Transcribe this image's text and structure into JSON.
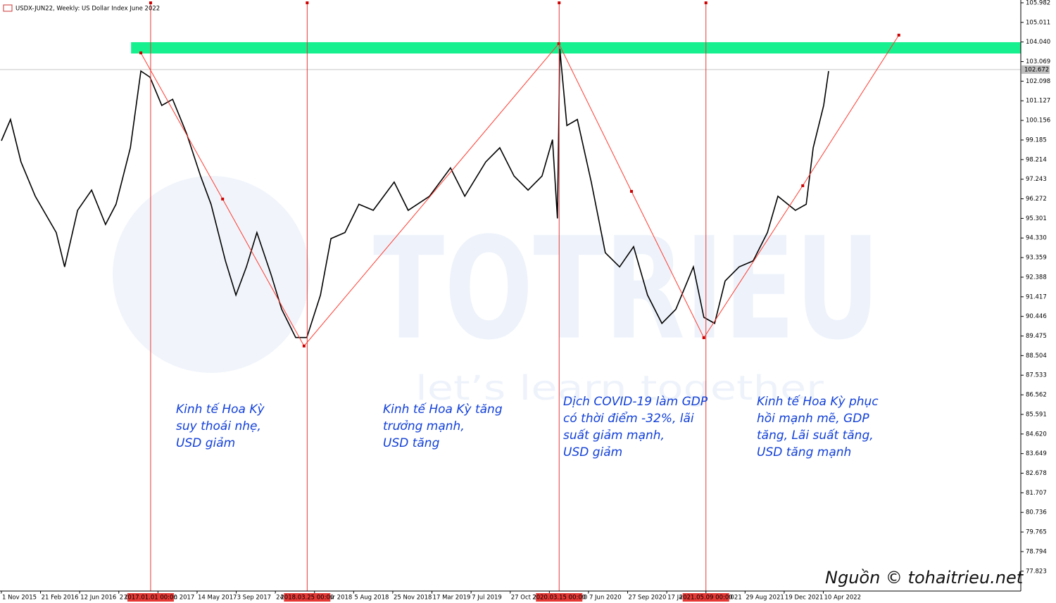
{
  "chart_data": {
    "type": "line",
    "title": "USDX-JUN22, Weekly:  US Dollar Index June 2022",
    "xlim": [
      "2015-10-28",
      "2023-10-27"
    ],
    "ylim": [
      76.84,
      106.12
    ],
    "yticks": [
      105.982,
      105.011,
      {
        "value": 104.04,
        "label": "104.040"
      },
      103.069,
      102.098,
      101.127,
      100.156,
      99.185,
      98.214,
      97.243,
      96.272,
      95.301,
      {
        "value": 94.33,
        "label": "94.330"
      },
      93.359,
      92.388,
      91.417,
      90.446,
      89.475,
      88.504,
      87.533,
      86.562,
      85.591,
      {
        "value": 84.62,
        "label": "84.620"
      },
      83.649,
      82.678,
      81.707,
      80.736,
      79.765,
      78.794,
      77.823
    ],
    "xticks": [
      {
        "value": "2015-11-01",
        "label": "1 Nov 2015"
      },
      {
        "value": "2016-02-21",
        "label": "21 Feb 2016"
      },
      {
        "value": "2016-06-12",
        "label": "12 Jun 2016"
      },
      {
        "value": "2016-10-02",
        "label": "2 Oct 2016"
      },
      {
        "value": "2017-01-22",
        "label": "22 Jan 2017"
      },
      {
        "value": "2017-05-14",
        "label": "14 May 2017"
      },
      {
        "value": "2017-09-03",
        "label": "3 Sep 2017"
      },
      {
        "value": "2017-12-24",
        "label": "24 Dec 2017"
      },
      {
        "value": "2018-04-15",
        "label": "15 Apr 2018"
      },
      {
        "value": "2018-08-05",
        "label": "5 Aug 2018"
      },
      {
        "value": "2018-11-25",
        "label": "25 Nov 2018"
      },
      {
        "value": "2019-03-17",
        "label": "17 Mar 2019"
      },
      {
        "value": "2019-07-07",
        "label": "7 Jul 2019"
      },
      {
        "value": "2019-10-27",
        "label": "27 Oct 2019"
      },
      {
        "value": "2020-02-16",
        "label": "16 Feb 2020"
      },
      {
        "value": "2020-06-07",
        "label": "7 Jun 2020"
      },
      {
        "value": "2020-09-27",
        "label": "27 Sep 2020"
      },
      {
        "value": "2021-01-17",
        "label": "17 Jan 2021"
      },
      {
        "value": "2021-05-09",
        "label": "9 May 2021"
      },
      {
        "value": "2021-08-29",
        "label": "29 Aug 2021"
      },
      {
        "value": "2021-12-19",
        "label": "19 Dec 2021"
      },
      {
        "value": "2022-04-10",
        "label": "10 Apr 2022"
      }
    ],
    "x": [
      "2015-11-01",
      "2015-11-27",
      "2015-12-27",
      "2016-02-06",
      "2016-04-06",
      "2016-04-30",
      "2016-06-06",
      "2016-07-16",
      "2016-08-25",
      "2016-09-24",
      "2016-11-04",
      "2016-12-04",
      "2016-12-30",
      "2017-02-02",
      "2017-03-05",
      "2017-04-14",
      "2017-05-24",
      "2017-06-23",
      "2017-08-03",
      "2017-09-02",
      "2017-10-02",
      "2017-11-01",
      "2017-12-12",
      "2018-01-11",
      "2018-02-20",
      "2018-03-24",
      "2018-05-02",
      "2018-06-01",
      "2018-07-11",
      "2018-08-20",
      "2018-09-30",
      "2018-11-29",
      "2019-01-08",
      "2019-03-10",
      "2019-05-09",
      "2019-06-19",
      "2019-08-18",
      "2019-09-27",
      "2019-11-07",
      "2019-12-17",
      "2020-01-26",
      "2020-02-25",
      "2020-03-10",
      "2020-03-17",
      "2020-04-06",
      "2020-05-06",
      "2020-06-15",
      "2020-07-25",
      "2020-09-04",
      "2020-10-14",
      "2020-11-23",
      "2021-01-03",
      "2021-02-12",
      "2021-04-03",
      "2021-05-03",
      "2021-06-03",
      "2021-07-03",
      "2021-08-12",
      "2021-09-21",
      "2021-11-01",
      "2021-12-01",
      "2022-01-20",
      "2022-02-20",
      "2022-03-12",
      "2022-04-11",
      "2022-04-25"
    ],
    "series": [
      {
        "color": "#000000",
        "values": [
          99.15,
          100.2,
          98.1,
          96.4,
          94.6,
          92.9,
          95.7,
          96.7,
          95.0,
          96.0,
          98.8,
          102.6,
          102.3,
          100.9,
          101.2,
          99.5,
          97.4,
          96.0,
          93.2,
          91.5,
          92.9,
          94.6,
          92.5,
          90.8,
          89.4,
          89.4,
          91.5,
          94.3,
          94.6,
          96.0,
          95.7,
          97.1,
          95.7,
          96.4,
          97.8,
          96.4,
          98.1,
          98.8,
          97.4,
          96.7,
          97.4,
          99.2,
          95.3,
          103.7,
          99.9,
          100.2,
          97.1,
          93.6,
          92.9,
          93.9,
          91.5,
          90.1,
          90.8,
          92.9,
          90.4,
          90.1,
          92.2,
          92.9,
          93.2,
          94.6,
          96.4,
          95.7,
          96.0,
          98.8,
          100.9,
          102.6
        ]
      }
    ],
    "zigzag": {
      "color": "#ff3b30",
      "x": [
        "2016-12-04",
        "2017-07-26",
        "2018-03-16",
        "2020-03-14",
        "2020-10-08",
        "2021-05-03",
        "2022-02-10",
        "2022-11-12"
      ],
      "values": [
        103.5,
        96.26,
        88.98,
        103.96,
        96.64,
        89.39,
        96.92,
        104.38
      ]
    },
    "zone": {
      "color": "#16f08f",
      "start": "2016-11-06",
      "ylim": [
        103.47,
        104.03
      ]
    },
    "current_price": 102.672,
    "vertical_lines": [
      {
        "value": "2017-01-01",
        "label": "2017.01.01 00:00"
      },
      {
        "value": "2018-03-25",
        "label": "2018.03.25 00:00"
      },
      {
        "value": "2020-03-15",
        "label": "2020.03.15 00:00"
      },
      {
        "value": "2021-05-09",
        "label": "2021.05.09 00:00"
      }
    ],
    "annotations": [
      [
        "Kinh tế Hoa Kỳ",
        "suy thoái nhẹ,",
        "USD giảm"
      ],
      [
        "Kinh tế Hoa Kỳ tăng",
        "trưởng mạnh,",
        "USD tăng"
      ],
      [
        "Dịch COVID-19 làm GDP",
        "có thời điểm -32%, lãi",
        "suất giảm mạnh,",
        "USD giảm"
      ],
      [
        "Kinh tế Hoa Kỳ phục",
        "hồi mạnh mẽ, GDP",
        "tăng, Lãi suất tăng,",
        "USD tăng mạnh"
      ]
    ],
    "watermark": [
      "TOTRIEU",
      "let’s learn together"
    ],
    "source": "Nguồn © tohaitrieu.net"
  }
}
